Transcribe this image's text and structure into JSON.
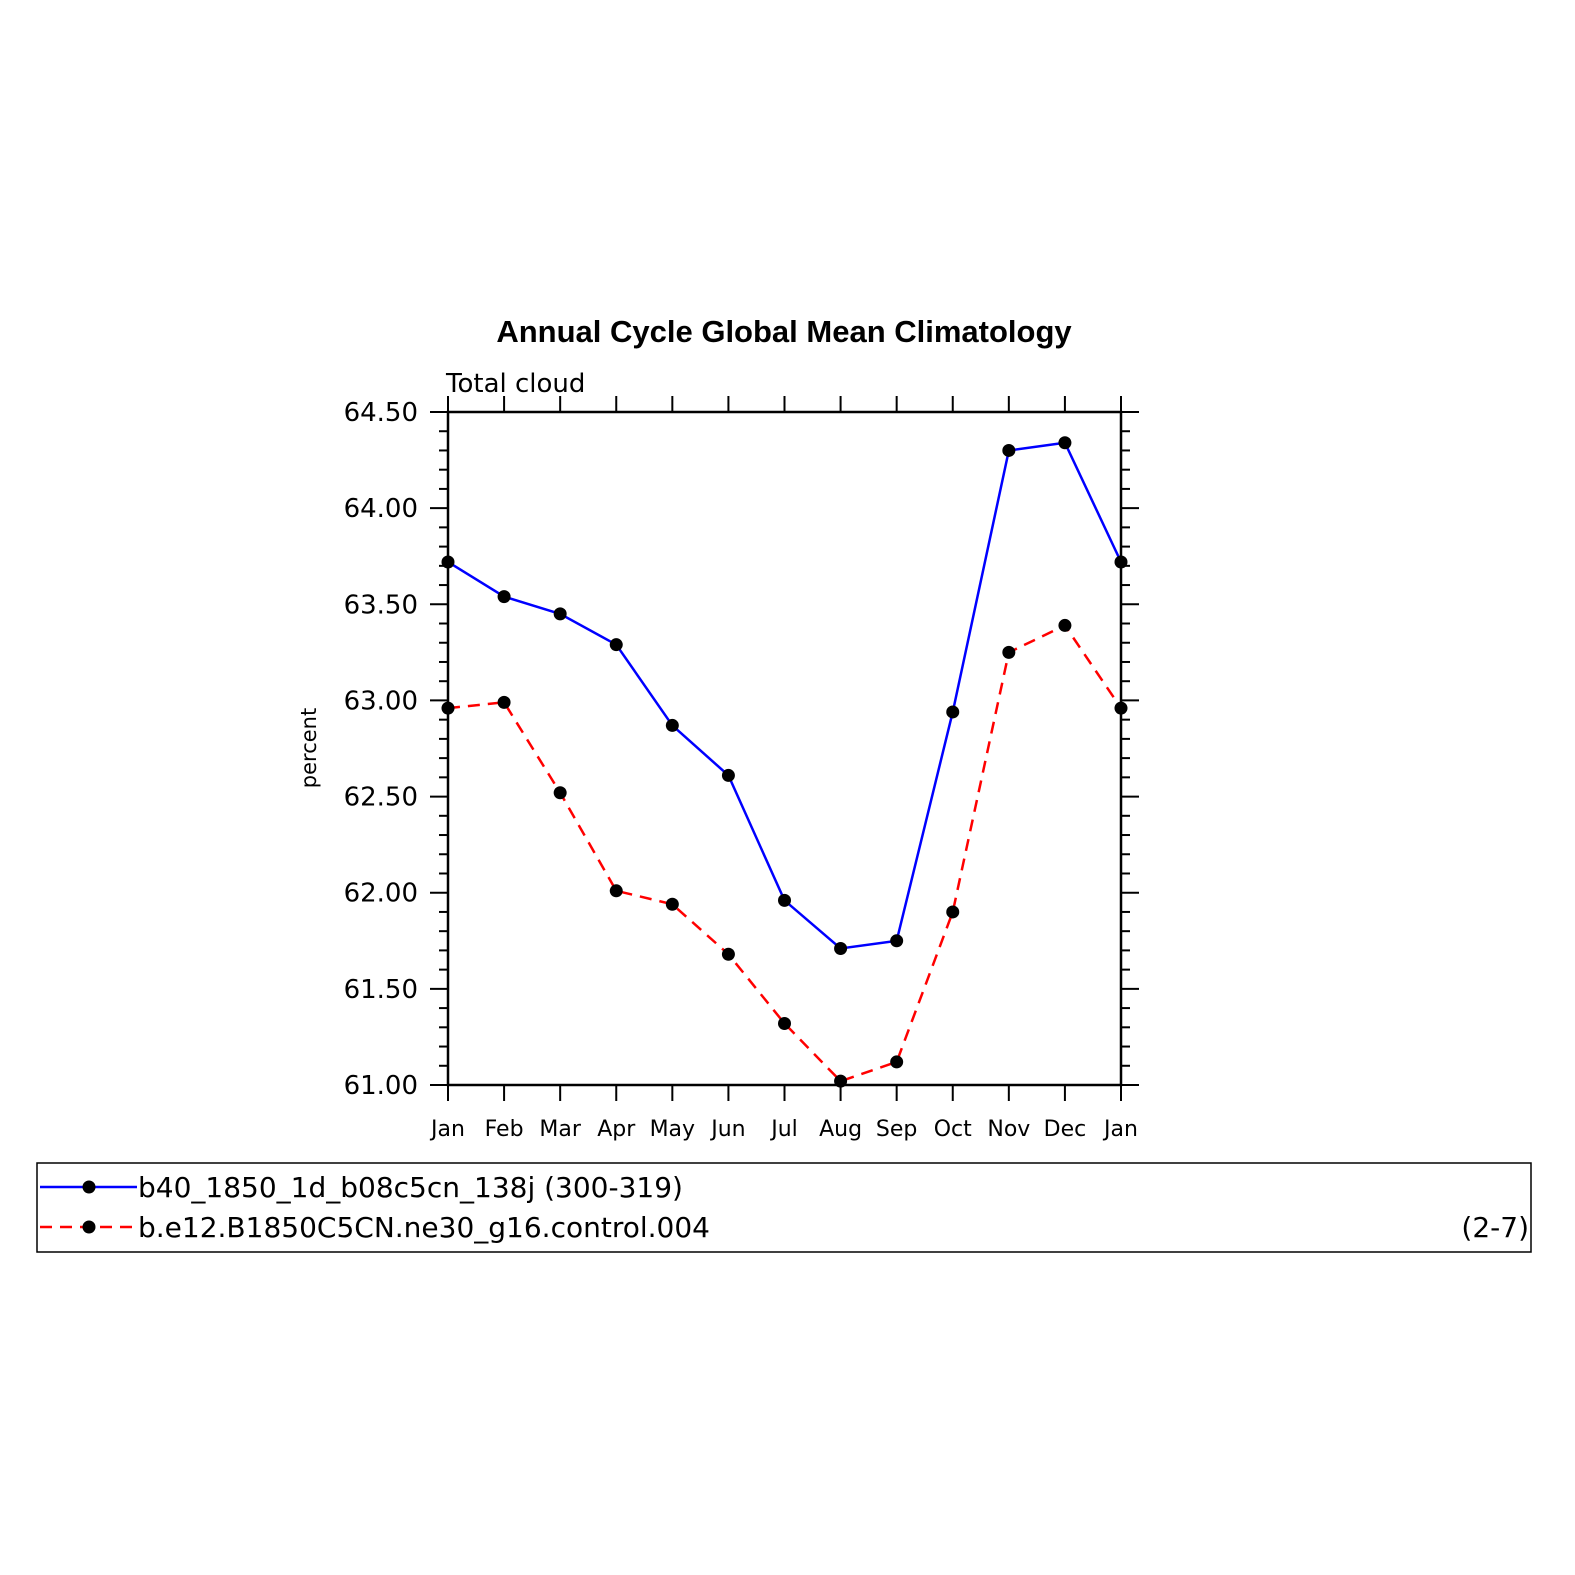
{
  "chart_data": {
    "type": "line",
    "title": "Annual Cycle Global Mean Climatology",
    "subtitle": "Total cloud",
    "xlabel": "",
    "ylabel": "percent",
    "categories": [
      "Jan",
      "Feb",
      "Mar",
      "Apr",
      "May",
      "Jun",
      "Jul",
      "Aug",
      "Sep",
      "Oct",
      "Nov",
      "Dec",
      "Jan"
    ],
    "ylim": [
      61.0,
      64.5
    ],
    "yticks": [
      "61.00",
      "61.50",
      "62.00",
      "62.50",
      "63.00",
      "63.50",
      "64.00",
      "64.50"
    ],
    "grid": false,
    "legend_position": "bottom",
    "series": [
      {
        "name": "b40_1850_1d_b08c5cn_138j (300-319)",
        "color": "#0000ff",
        "style": "solid",
        "marker": "circle",
        "values": [
          63.72,
          63.54,
          63.45,
          63.29,
          62.87,
          62.61,
          61.96,
          61.71,
          61.75,
          62.94,
          64.3,
          64.34,
          63.72
        ]
      },
      {
        "name": "b.e12.B1850C5CN.ne30_g16.control.004",
        "color": "#ff0000",
        "style": "dashed",
        "marker": "circle",
        "values": [
          62.96,
          62.99,
          62.52,
          62.01,
          61.94,
          61.68,
          61.32,
          61.02,
          61.12,
          61.9,
          63.25,
          63.39,
          62.96
        ]
      }
    ],
    "annotation": "(2-7)"
  }
}
